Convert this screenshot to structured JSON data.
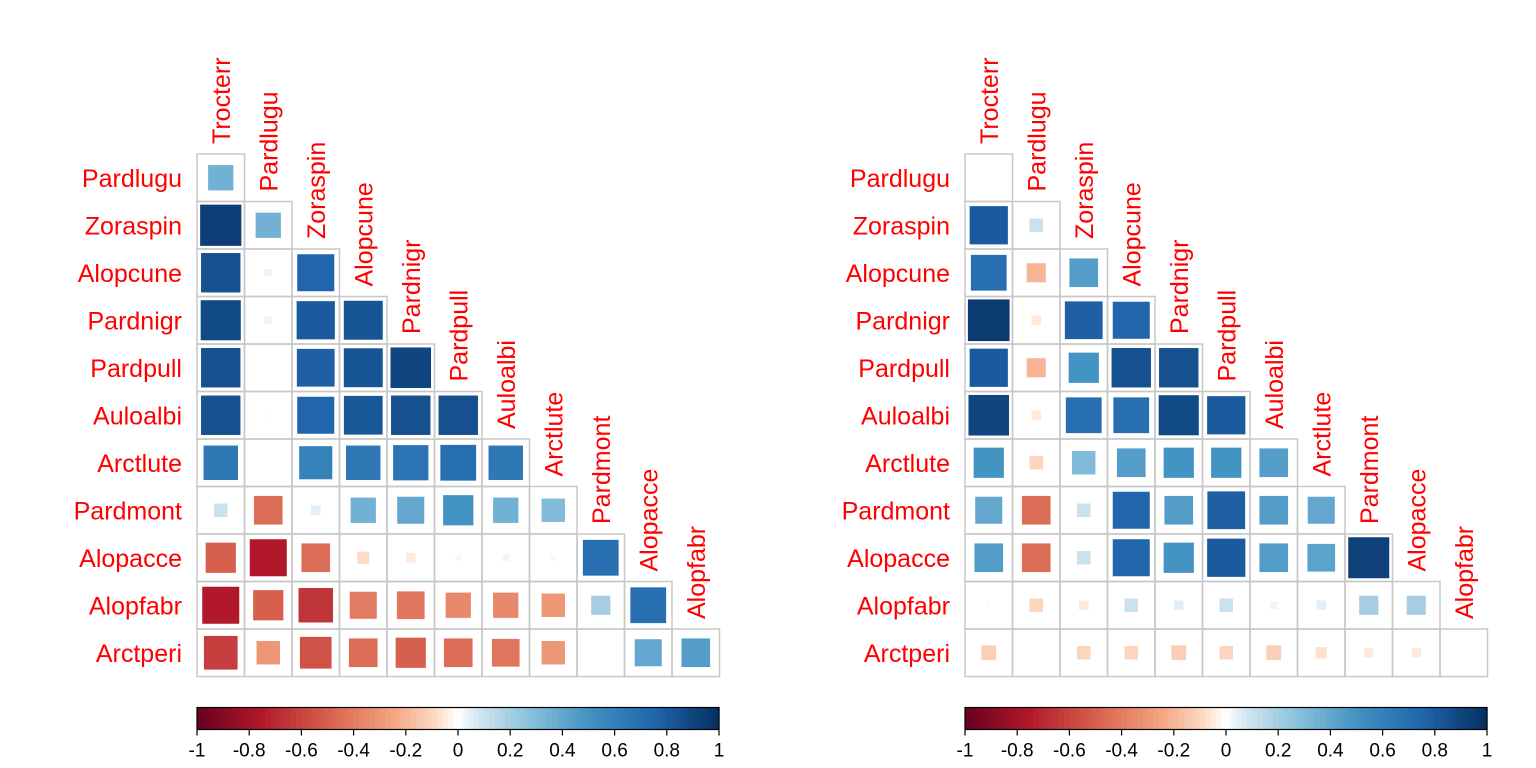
{
  "chart_data": [
    {
      "type": "heatmap",
      "variables": [
        "Trocterr",
        "Pardlugu",
        "Zoraspin",
        "Alopcune",
        "Pardnigr",
        "Pardpull",
        "Auloalbi",
        "Arctlute",
        "Pardmont",
        "Alopacce",
        "Alopfabr",
        "Arctperi"
      ],
      "matrix_lower": [
        [
          0.35
        ],
        [
          0.93,
          0.35
        ],
        [
          0.85,
          0.03,
          0.75
        ],
        [
          0.88,
          0.03,
          0.8,
          0.83
        ],
        [
          0.85,
          0.0,
          0.78,
          0.83,
          0.9
        ],
        [
          0.85,
          0.01,
          0.75,
          0.82,
          0.85,
          0.85
        ],
        [
          0.65,
          0.0,
          0.6,
          0.65,
          0.68,
          0.7,
          0.65
        ],
        [
          0.1,
          -0.45,
          0.05,
          0.35,
          0.4,
          0.5,
          0.35,
          0.3
        ],
        [
          -0.5,
          -0.75,
          -0.45,
          -0.08,
          -0.05,
          -0.02,
          -0.03,
          -0.02,
          0.7
        ],
        [
          -0.75,
          -0.5,
          -0.65,
          -0.4,
          -0.42,
          -0.35,
          -0.35,
          -0.3,
          0.2,
          0.7
        ],
        [
          -0.62,
          -0.3,
          -0.55,
          -0.45,
          -0.5,
          -0.45,
          -0.42,
          -0.3,
          0.0,
          0.4,
          0.45
        ]
      ],
      "color_range": [
        -1,
        1
      ],
      "colorbar_ticks": [
        "-1",
        "-0.8",
        "-0.6",
        "-0.4",
        "-0.2",
        "0",
        "0.2",
        "0.4",
        "0.6",
        "0.8",
        "1"
      ]
    },
    {
      "type": "heatmap",
      "variables": [
        "Trocterr",
        "Pardlugu",
        "Zoraspin",
        "Alopcune",
        "Pardnigr",
        "Pardpull",
        "Auloalbi",
        "Arctlute",
        "Pardmont",
        "Alopacce",
        "Alopfabr",
        "Arctperi"
      ],
      "matrix_lower": [
        [
          0.0
        ],
        [
          0.8,
          0.1
        ],
        [
          0.7,
          -0.2,
          0.45
        ],
        [
          0.95,
          -0.05,
          0.78,
          0.75
        ],
        [
          0.8,
          -0.2,
          0.5,
          0.85,
          0.85
        ],
        [
          0.9,
          -0.05,
          0.7,
          0.7,
          0.88,
          0.8
        ],
        [
          0.5,
          -0.1,
          0.3,
          0.45,
          0.5,
          0.5,
          0.45
        ],
        [
          0.4,
          -0.45,
          0.1,
          0.75,
          0.45,
          0.78,
          0.45,
          0.4
        ],
        [
          0.45,
          -0.45,
          0.1,
          0.75,
          0.5,
          0.8,
          0.45,
          0.42,
          0.92
        ],
        [
          0.01,
          -0.1,
          -0.05,
          0.1,
          0.05,
          0.1,
          0.03,
          0.05,
          0.2,
          0.2
        ],
        [
          -0.12,
          0.0,
          -0.1,
          -0.1,
          -0.12,
          -0.1,
          -0.12,
          -0.07,
          -0.05,
          -0.05,
          0.0
        ]
      ],
      "color_range": [
        -1,
        1
      ],
      "colorbar_ticks": [
        "-1",
        "-0.8",
        "-0.6",
        "-0.4",
        "-0.2",
        "0",
        "0.2",
        "0.4",
        "0.6",
        "0.8",
        "1"
      ]
    }
  ]
}
